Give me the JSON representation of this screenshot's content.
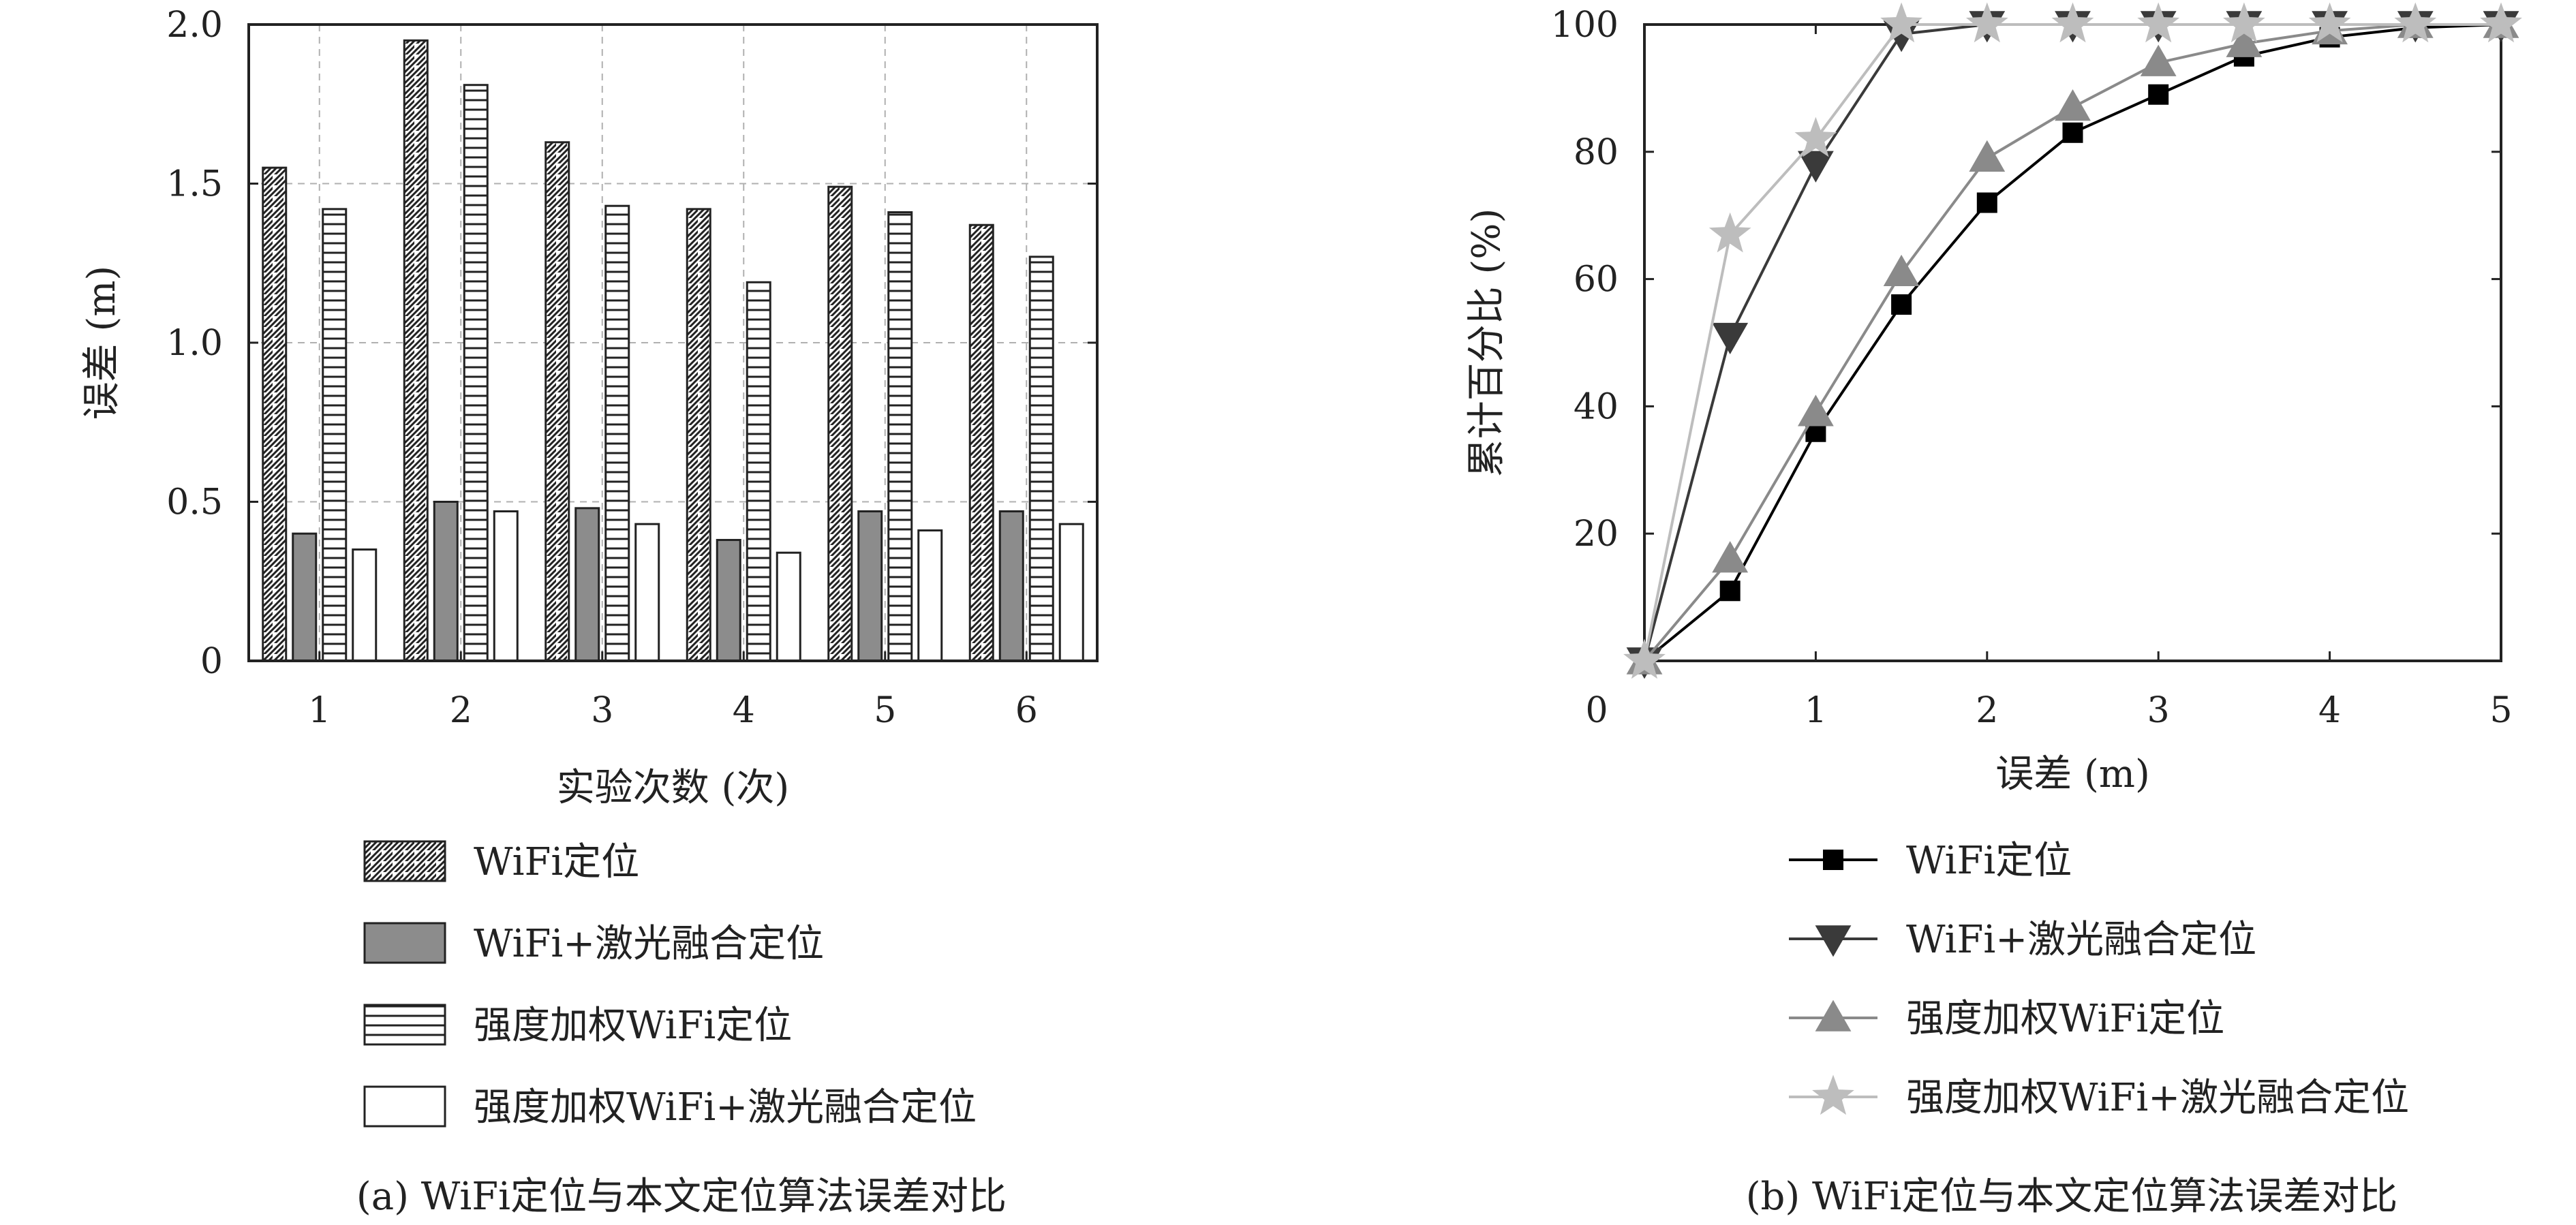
{
  "chart_data": [
    {
      "type": "bar",
      "xlabel": "实验次数 (次)",
      "ylabel": "误差 (m)",
      "ylim": [
        0,
        2.0
      ],
      "yticks": [
        "0",
        "0.5",
        "1.0",
        "1.5",
        "2.0"
      ],
      "categories": [
        "1",
        "2",
        "3",
        "4",
        "5",
        "6"
      ],
      "grid": true,
      "legend_position": "below",
      "caption": "(a) WiFi定位与本文定位算法误差对比",
      "series": [
        {
          "name": "WiFi定位",
          "pattern": "diagonal-hatch",
          "values": [
            1.55,
            1.95,
            1.63,
            1.42,
            1.49,
            1.37
          ]
        },
        {
          "name": "WiFi+激光融合定位",
          "pattern": "solid-gray",
          "values": [
            0.4,
            0.5,
            0.48,
            0.38,
            0.47,
            0.47
          ]
        },
        {
          "name": "强度加权WiFi定位",
          "pattern": "horizontal-hatch",
          "values": [
            1.42,
            1.81,
            1.43,
            1.19,
            1.41,
            1.27
          ]
        },
        {
          "name": "强度加权WiFi+激光融合定位",
          "pattern": "white",
          "values": [
            0.35,
            0.47,
            0.43,
            0.34,
            0.41,
            0.43
          ]
        }
      ]
    },
    {
      "type": "line",
      "xlabel": "误差 (m)",
      "ylabel": "累计百分比 (%)",
      "xlim": [
        0,
        5
      ],
      "ylim": [
        0,
        100
      ],
      "xticks": [
        "0",
        "1",
        "2",
        "3",
        "4",
        "5"
      ],
      "yticks": [
        "20",
        "40",
        "60",
        "80",
        "100"
      ],
      "grid": false,
      "legend_position": "below",
      "caption": "(b) WiFi定位与本文定位算法误差对比",
      "series": [
        {
          "name": "WiFi定位",
          "marker": "square",
          "color": "#000000",
          "x": [
            0,
            0.5,
            1,
            1.5,
            2,
            2.5,
            3,
            3.5,
            4,
            4.5,
            5
          ],
          "y": [
            0,
            11,
            36,
            56,
            72,
            83,
            89,
            95,
            98,
            99.5,
            100
          ]
        },
        {
          "name": "WiFi+激光融合定位",
          "marker": "triangle-down",
          "color": "#3a3a3a",
          "x": [
            0,
            0.5,
            1,
            1.5,
            2,
            2.5,
            3,
            3.5,
            4,
            4.5,
            5
          ],
          "y": [
            0,
            51,
            78,
            98.5,
            100,
            100,
            100,
            100,
            100,
            100,
            100
          ]
        },
        {
          "name": "强度加权WiFi定位",
          "marker": "triangle-up",
          "color": "#8a8a8a",
          "x": [
            0,
            0.5,
            1,
            1.5,
            2,
            2.5,
            3,
            3.5,
            4,
            4.5,
            5
          ],
          "y": [
            0,
            16,
            39,
            61,
            79,
            87,
            94,
            97,
            99,
            100,
            100
          ]
        },
        {
          "name": "强度加权WiFi+激光融合定位",
          "marker": "star",
          "color": "#bdbdbd",
          "x": [
            0,
            0.5,
            1,
            1.5,
            2,
            2.5,
            3,
            3.5,
            4,
            4.5,
            5
          ],
          "y": [
            0,
            67,
            82,
            100,
            100,
            100,
            100,
            100,
            100,
            100,
            100
          ]
        }
      ]
    }
  ]
}
